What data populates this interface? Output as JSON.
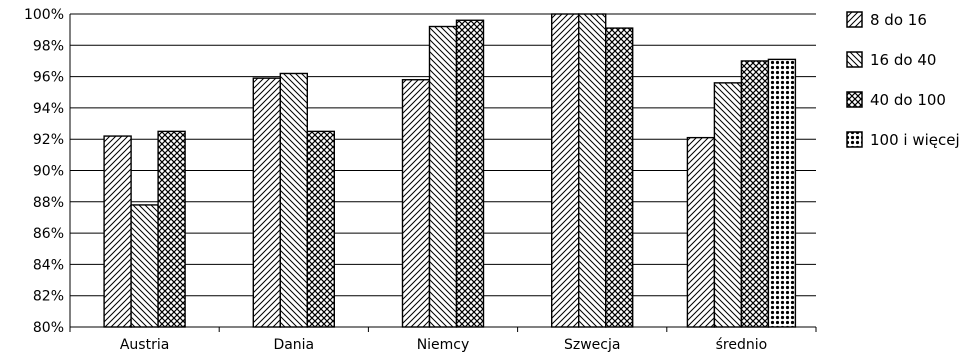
{
  "chart_data": {
    "type": "bar",
    "categories": [
      "Austria",
      "Dania",
      "Niemcy",
      "Szwecja",
      "średnio"
    ],
    "series": [
      {
        "name": "8 do 16",
        "values": [
          92.2,
          95.9,
          95.8,
          100.0,
          92.1
        ],
        "pattern": "diag-fwd"
      },
      {
        "name": "16 do 40",
        "values": [
          87.8,
          96.2,
          99.2,
          100.0,
          95.6
        ],
        "pattern": "diag-back"
      },
      {
        "name": "40 do 100",
        "values": [
          92.5,
          92.5,
          99.6,
          99.1,
          97.0
        ],
        "pattern": "crosshatch"
      },
      {
        "name": "100 i więcej",
        "values": [
          null,
          null,
          null,
          null,
          97.1
        ],
        "pattern": "dots"
      }
    ],
    "ylim": [
      80,
      100
    ],
    "yticks": [
      "80%",
      "82%",
      "84%",
      "86%",
      "88%",
      "90%",
      "92%",
      "94%",
      "96%",
      "98%",
      "100%"
    ],
    "grid": true,
    "legend": "right",
    "colors": {
      "stroke": "#000000",
      "background": "#ffffff",
      "grid": "#000000"
    }
  }
}
